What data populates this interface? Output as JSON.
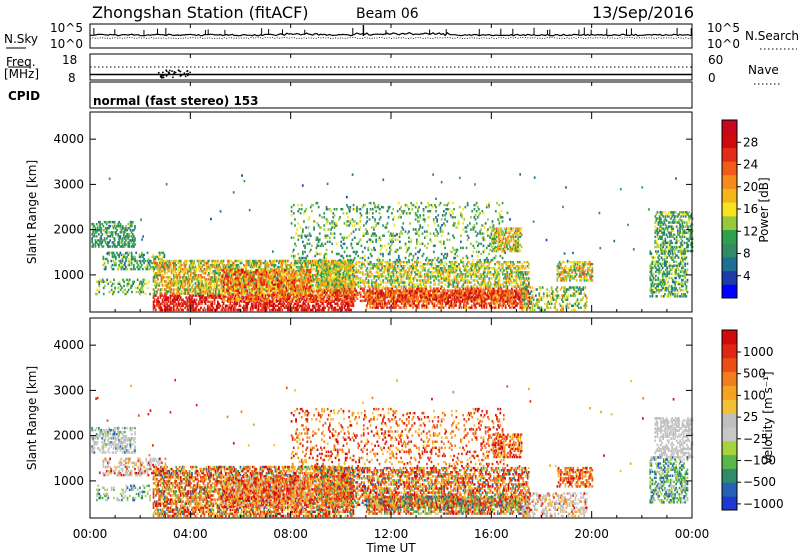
{
  "header": {
    "station": "Zhongshan Station (fitACF)",
    "beam": "Beam 06",
    "date": "13/Sep/2016"
  },
  "noise_panel": {
    "left_label": "N.Sky",
    "right_label": "N.Search",
    "y_ticks": [
      "10^5",
      "10^0"
    ]
  },
  "freq_panel": {
    "left_label_1": "Freq.",
    "left_label_2": "[MHz]",
    "left_ticks": [
      "18",
      "8"
    ],
    "right_label": "Nave",
    "right_ticks": [
      "60",
      "0"
    ]
  },
  "cpid_panel": {
    "label": "CPID",
    "text": "normal (fast stereo) 153"
  },
  "chart_data": [
    {
      "type": "heatmap",
      "name": "power",
      "ylabel": "Slant Range [km]",
      "ylim": [
        180,
        4600
      ],
      "yticks": [
        1000,
        2000,
        3000,
        4000
      ],
      "xlim": [
        0,
        24
      ],
      "xtick_labels": [
        "00:00",
        "04:00",
        "08:00",
        "12:00",
        "16:00",
        "20:00",
        "00:00"
      ],
      "colorbar": {
        "label": "Power [dB]",
        "range": [
          0,
          32
        ],
        "ticks": [
          4,
          8,
          12,
          16,
          20,
          24,
          28
        ],
        "colors": [
          "#0000ff",
          "#1e3ca8",
          "#1f6e95",
          "#348a62",
          "#2fa14c",
          "#98c93a",
          "#f6e51e",
          "#f5b618",
          "#f68b1c",
          "#f05a1a",
          "#e32b18",
          "#cf0a0a",
          "#c8071e"
        ]
      }
    },
    {
      "type": "heatmap",
      "name": "velocity",
      "ylabel": "Slant Range [km]",
      "ylim": [
        180,
        4600
      ],
      "yticks": [
        1000,
        2000,
        3000,
        4000
      ],
      "xlim": [
        0,
        24
      ],
      "xtick_labels": [
        "00:00",
        "04:00",
        "08:00",
        "12:00",
        "16:00",
        "20:00",
        "00:00"
      ],
      "xlabel": "Time UT",
      "colorbar": {
        "label": "Velocity [m s⁻¹]",
        "ticks": [
          "1000",
          "500",
          "100",
          "25",
          "−25",
          "−100",
          "−500",
          "−1000"
        ],
        "colors": [
          "#1d3ad0",
          "#2661b5",
          "#2e8c6b",
          "#59b64a",
          "#a6d43d",
          "#c7c7c7",
          "#bfbfbf",
          "#f3c234",
          "#f3a222",
          "#f27d1c",
          "#ec4e18",
          "#e12714",
          "#d00b0b"
        ]
      }
    }
  ]
}
